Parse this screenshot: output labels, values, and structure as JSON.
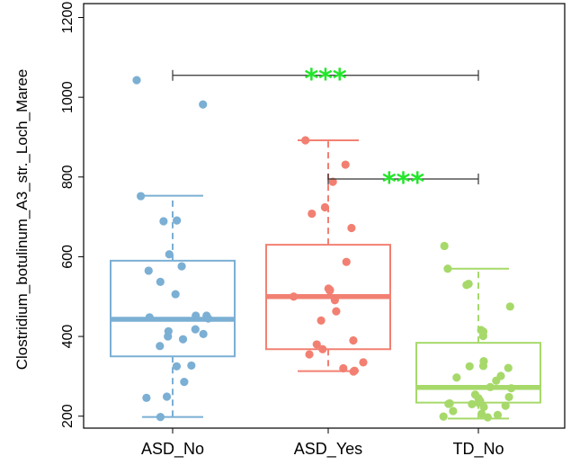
{
  "chart_data": {
    "type": "box",
    "ylabel": "Clostridium_botulinum_A3_str._Loch_Maree",
    "xlabel": "",
    "ylim": [
      170,
      1235
    ],
    "yticks": [
      200,
      400,
      600,
      800,
      1000,
      1200
    ],
    "categories": [
      "ASD_No",
      "ASD_Yes",
      "TD_No"
    ],
    "colors": [
      "#7bafd4",
      "#f28072",
      "#a6d96a"
    ],
    "boxes": [
      {
        "q1": 350,
        "median": 443,
        "q3": 590,
        "whisker_low": 198,
        "whisker_high": 753
      },
      {
        "q1": 368,
        "median": 500,
        "q3": 630,
        "whisker_low": 313,
        "whisker_high": 892
      },
      {
        "q1": 234,
        "median": 272,
        "q3": 384,
        "whisker_low": 194,
        "whisker_high": 570
      }
    ],
    "points": [
      [
        1043,
        982,
        752,
        691,
        689,
        606,
        576,
        565,
        537,
        506,
        452,
        452,
        448,
        445,
        418,
        413,
        406,
        400,
        393,
        376,
        327,
        325,
        286,
        249,
        246,
        198
      ],
      [
        892,
        831,
        788,
        724,
        708,
        672,
        587,
        520,
        517,
        515,
        500,
        491,
        463,
        440,
        390,
        380,
        368,
        355,
        335,
        320,
        314,
        312
      ],
      [
        627,
        570,
        532,
        529,
        475,
        416,
        412,
        401,
        338,
        326,
        325,
        321,
        301,
        297,
        289,
        273,
        270,
        254,
        248,
        245,
        238,
        234,
        232,
        231,
        230,
        226,
        223,
        213,
        206,
        203,
        199,
        197
      ]
    ],
    "significance": [
      {
        "from": "ASD_No",
        "to": "TD_No",
        "y": 1055,
        "label": "***"
      },
      {
        "from": "ASD_Yes",
        "to": "TD_No",
        "y": 795,
        "label": "***"
      }
    ],
    "significance_color": "#22e62a",
    "grid": false,
    "legend": "none"
  }
}
